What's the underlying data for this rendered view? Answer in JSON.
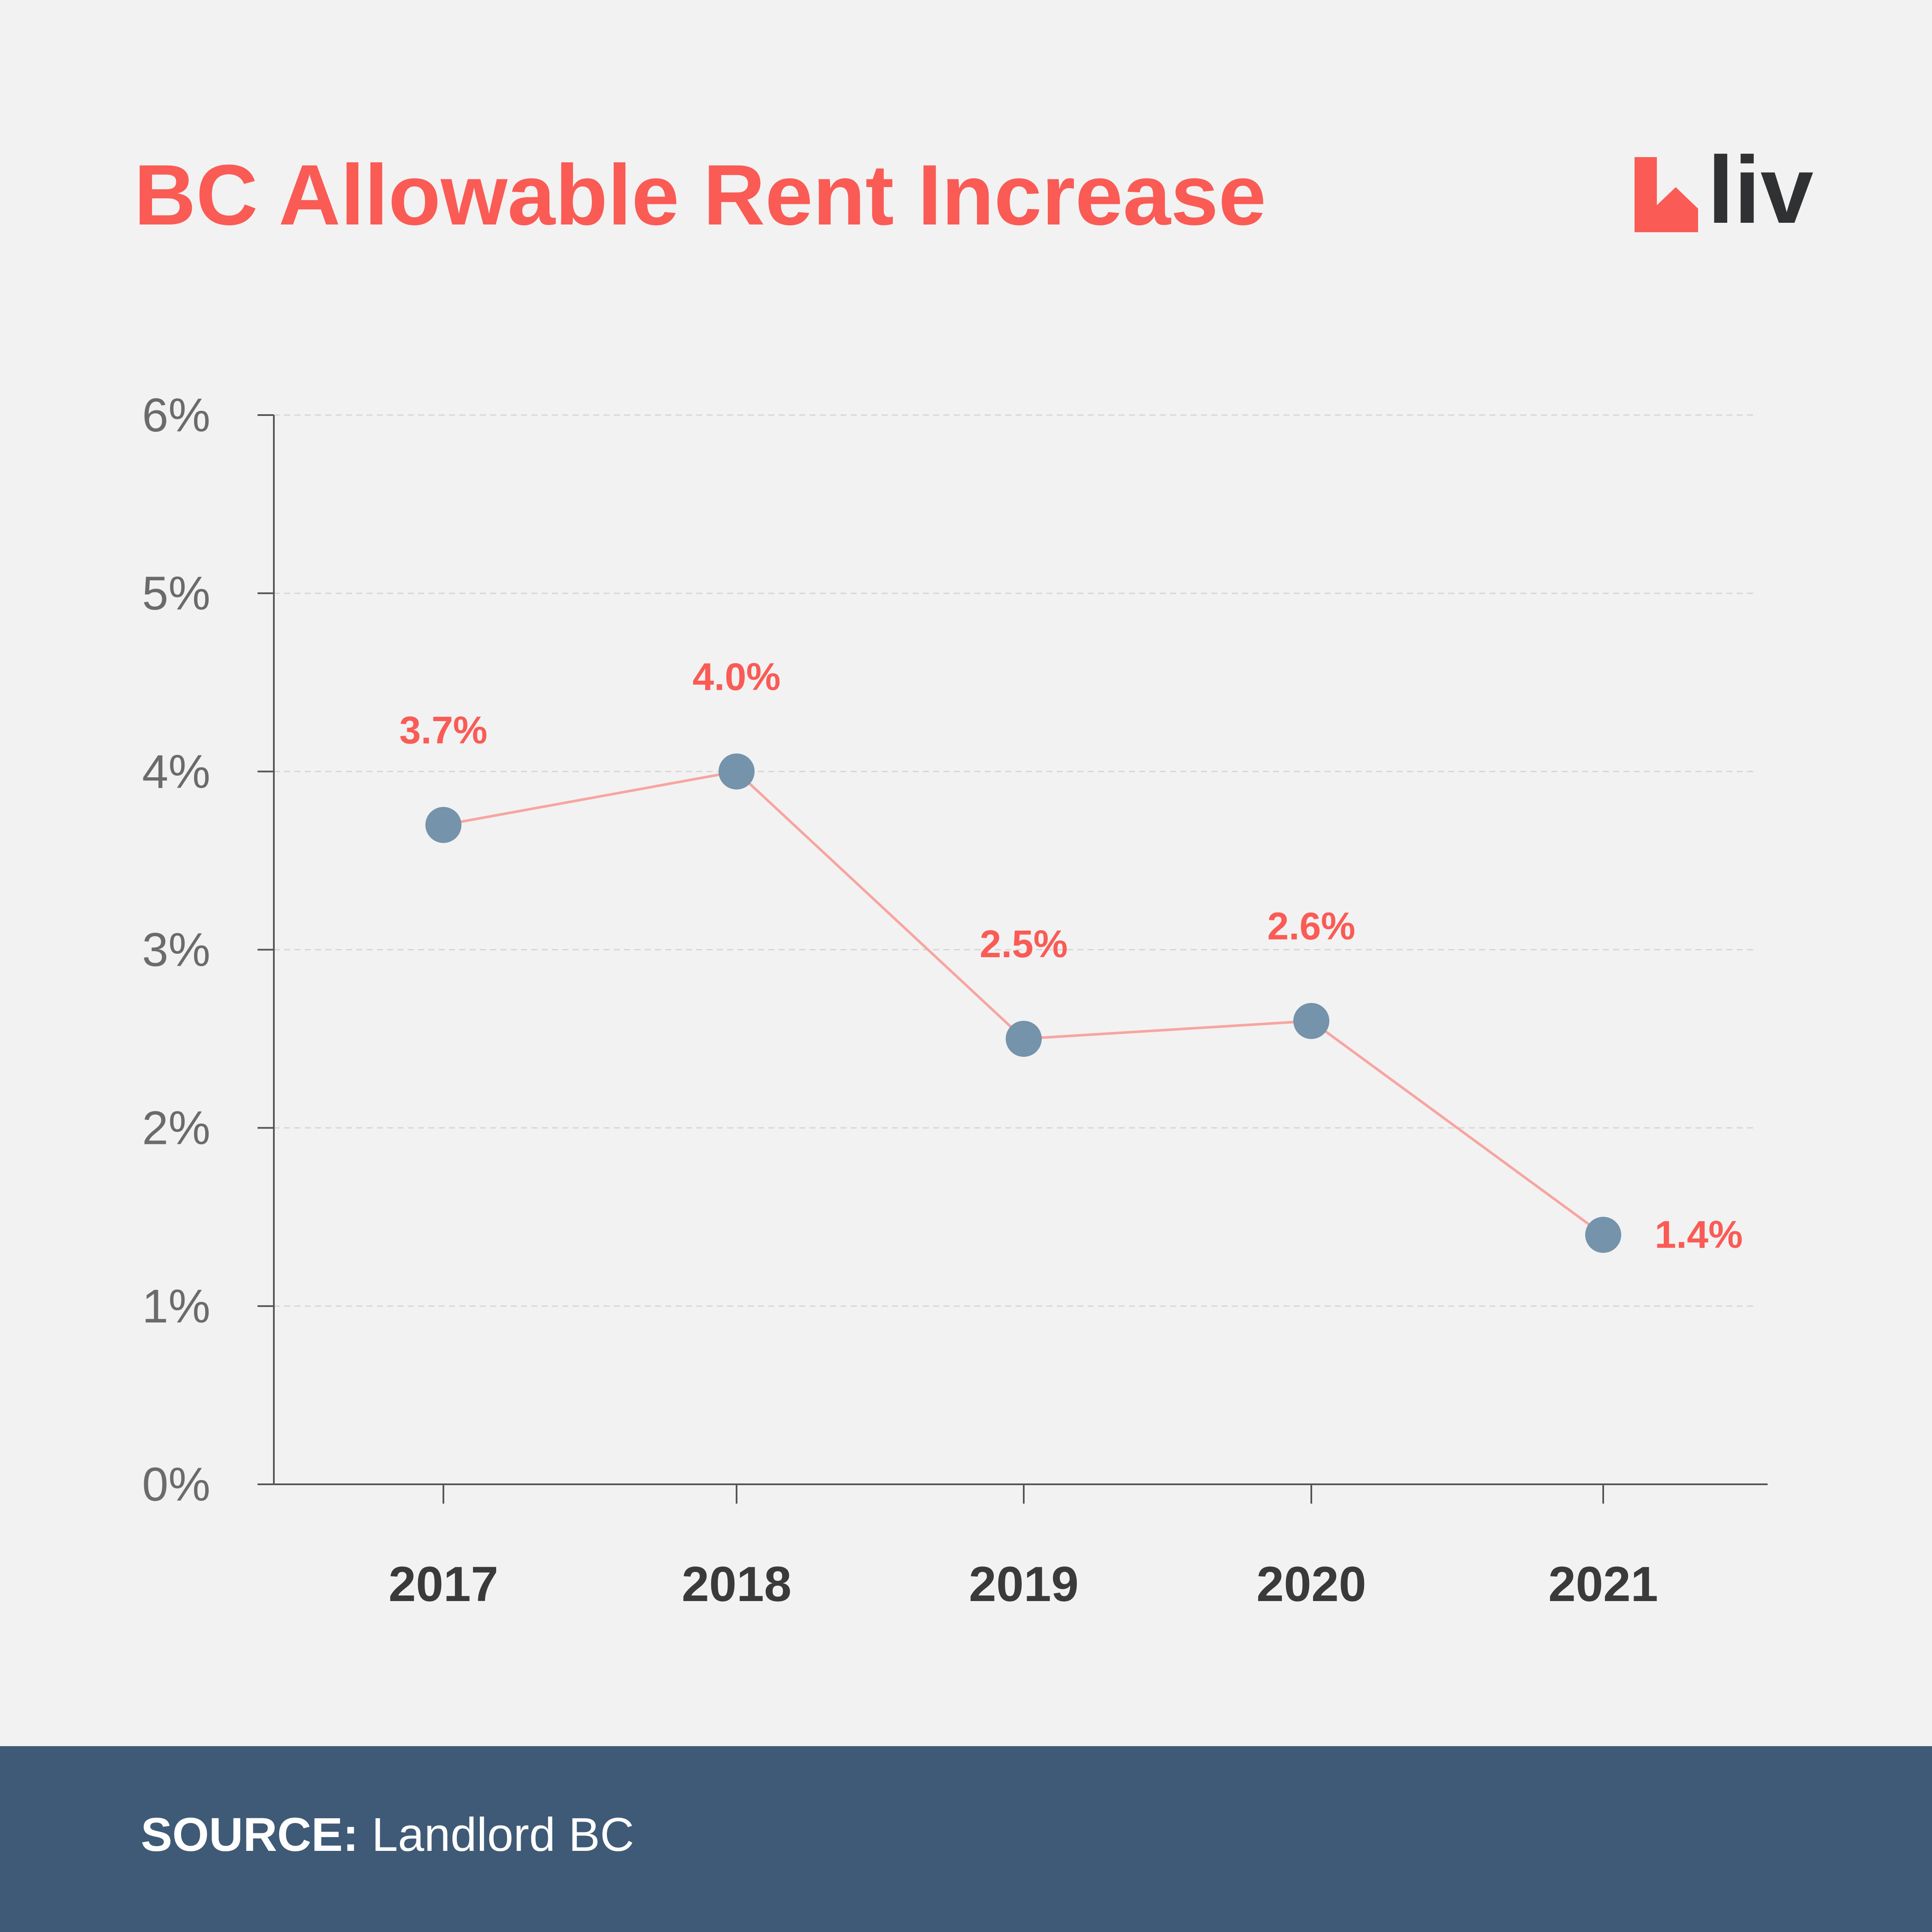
{
  "title": "BC Allowable Rent Increase",
  "logo": {
    "text": "liv",
    "icon": "liv-logo-icon"
  },
  "footer": {
    "source_label": "SOURCE:",
    "source_value": "Landlord BC"
  },
  "colors": {
    "title": "#fa5b55",
    "line": "#f7a5a1",
    "point": "#7593aa",
    "data_label": "#fa5b55",
    "axis": "#555555",
    "tick_label": "#6b6b6b",
    "year_label": "#3a3a3a",
    "grid": "#d6d6d6",
    "footer_bg": "#3e5a76",
    "background": "#f2f2f2"
  },
  "chart_data": {
    "type": "line",
    "title": "BC Allowable Rent Increase",
    "xlabel": "",
    "ylabel": "",
    "categories": [
      "2017",
      "2018",
      "2019",
      "2020",
      "2021"
    ],
    "series": [
      {
        "values": [
          3.7,
          4.0,
          2.5,
          2.6,
          1.4
        ],
        "labels": [
          "3.7%",
          "4.0%",
          "2.5%",
          "2.6%",
          "1.4%"
        ]
      }
    ],
    "ylim": [
      0,
      6
    ],
    "yticks": [
      0,
      1,
      2,
      3,
      4,
      5,
      6
    ],
    "ytick_labels": [
      "0%",
      "1%",
      "2%",
      "3%",
      "4%",
      "5%",
      "6%"
    ],
    "grid": true,
    "grid_style": "dashed-horizontal",
    "legend": "none"
  }
}
